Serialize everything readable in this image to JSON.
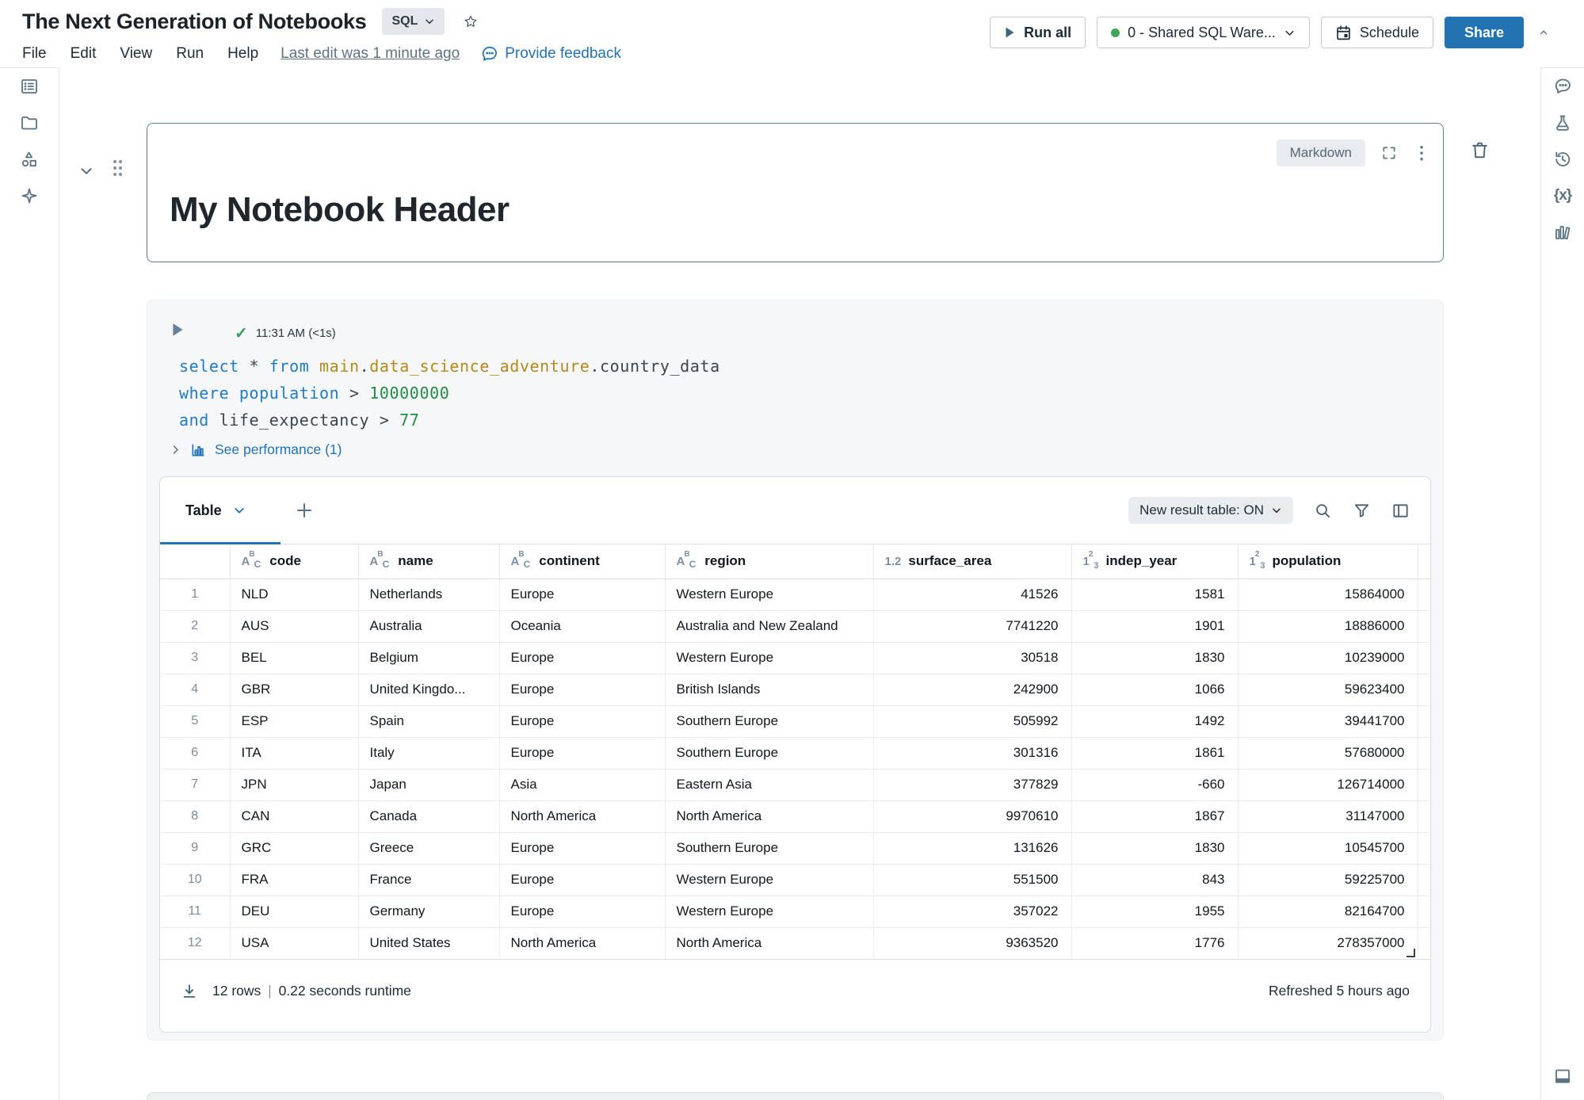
{
  "topbar": {
    "title": "The Next Generation of Notebooks",
    "language": "SQL",
    "menu": [
      "File",
      "Edit",
      "View",
      "Run",
      "Help"
    ],
    "last_edit": "Last edit was 1 minute ago",
    "feedback": "Provide feedback",
    "run_all": "Run all",
    "warehouse": "0 - Shared SQL Ware...",
    "schedule": "Schedule",
    "share": "Share"
  },
  "markdown_cell": {
    "heading": "My Notebook Header",
    "type_badge": "Markdown"
  },
  "sql_cell": {
    "timestamp": "11:31 AM (<1s)",
    "code_lines": [
      [
        {
          "t": "select",
          "c": "kw"
        },
        {
          "t": " * ",
          "c": "pl"
        },
        {
          "t": "from",
          "c": "kw"
        },
        {
          "t": " ",
          "c": "pl"
        },
        {
          "t": "main",
          "c": "id"
        },
        {
          "t": ".",
          "c": "pl"
        },
        {
          "t": "data_science_adventure",
          "c": "id"
        },
        {
          "t": ".country_data",
          "c": "pl"
        }
      ],
      [
        {
          "t": "where",
          "c": "kw"
        },
        {
          "t": " ",
          "c": "pl"
        },
        {
          "t": "population",
          "c": "kw"
        },
        {
          "t": " > ",
          "c": "pl"
        },
        {
          "t": "10000000",
          "c": "num"
        }
      ],
      [
        {
          "t": "and",
          "c": "kw"
        },
        {
          "t": " life_expectancy > ",
          "c": "pl"
        },
        {
          "t": "77",
          "c": "num"
        }
      ]
    ],
    "performance_link": "See performance (1)"
  },
  "results": {
    "active_tab": "Table",
    "toggle": "New result table: ON",
    "columns": [
      {
        "label": "",
        "type": "rownum"
      },
      {
        "label": "code",
        "type": "string"
      },
      {
        "label": "name",
        "type": "string"
      },
      {
        "label": "continent",
        "type": "string"
      },
      {
        "label": "region",
        "type": "string"
      },
      {
        "label": "surface_area",
        "type": "decimal"
      },
      {
        "label": "indep_year",
        "type": "integer"
      },
      {
        "label": "population",
        "type": "integer"
      },
      {
        "label": "",
        "type": "spacer"
      }
    ],
    "rows": [
      [
        "1",
        "NLD",
        "Netherlands",
        "Europe",
        "Western Europe",
        "41526",
        "1581",
        "15864000"
      ],
      [
        "2",
        "AUS",
        "Australia",
        "Oceania",
        "Australia and New Zealand",
        "7741220",
        "1901",
        "18886000"
      ],
      [
        "3",
        "BEL",
        "Belgium",
        "Europe",
        "Western Europe",
        "30518",
        "1830",
        "10239000"
      ],
      [
        "4",
        "GBR",
        "United Kingdo...",
        "Europe",
        "British Islands",
        "242900",
        "1066",
        "59623400"
      ],
      [
        "5",
        "ESP",
        "Spain",
        "Europe",
        "Southern Europe",
        "505992",
        "1492",
        "39441700"
      ],
      [
        "6",
        "ITA",
        "Italy",
        "Europe",
        "Southern Europe",
        "301316",
        "1861",
        "57680000"
      ],
      [
        "7",
        "JPN",
        "Japan",
        "Asia",
        "Eastern Asia",
        "377829",
        "-660",
        "126714000"
      ],
      [
        "8",
        "CAN",
        "Canada",
        "North America",
        "North America",
        "9970610",
        "1867",
        "31147000"
      ],
      [
        "9",
        "GRC",
        "Greece",
        "Europe",
        "Southern Europe",
        "131626",
        "1830",
        "10545700"
      ],
      [
        "10",
        "FRA",
        "France",
        "Europe",
        "Western Europe",
        "551500",
        "843",
        "59225700"
      ],
      [
        "11",
        "DEU",
        "Germany",
        "Europe",
        "Western Europe",
        "357022",
        "1955",
        "82164700"
      ],
      [
        "12",
        "USA",
        "United States",
        "North America",
        "North America",
        "9363520",
        "1776",
        "278357000"
      ]
    ],
    "row_count_text": "12 rows",
    "separator": "|",
    "runtime_text": "0.22 seconds runtime",
    "refreshed_text": "Refreshed 5 hours ago"
  },
  "colors": {
    "accent": "#2272b4",
    "warehouse_status_green": "#3fa45b",
    "success_check_green": "#2e9e5b",
    "focused_cell_border": "#5c7e99"
  }
}
